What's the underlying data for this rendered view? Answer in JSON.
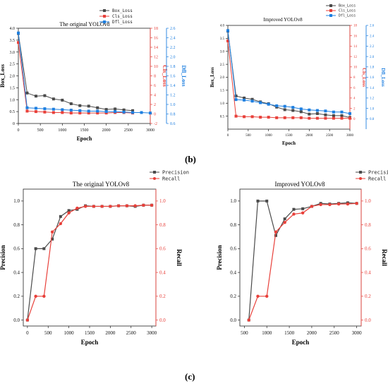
{
  "captions": {
    "b": "(b)",
    "c": "(c)"
  },
  "chart_data": [
    {
      "type": "line",
      "title": "The original YOLOv8",
      "xlabel": "Epoch",
      "ylabel": "Box_Loss",
      "y2label": "Cls_Loss",
      "y3label": "Dfl_Loss",
      "xlim": [
        0,
        3000
      ],
      "xticks": [
        0,
        500,
        1000,
        1500,
        2000,
        2500,
        3000
      ],
      "ylim": [
        0,
        4
      ],
      "yticks": [
        "0",
        "0.5",
        "1.0",
        "1.5",
        "2.0",
        "2.5",
        "3.0",
        "3.5",
        "4.0"
      ],
      "y2lim": [
        -2,
        18
      ],
      "y2ticks": [
        "-2",
        "0",
        "2",
        "4",
        "6",
        "8",
        "10",
        "12",
        "14",
        "16",
        "18"
      ],
      "y3lim": [
        0.6,
        2.6
      ],
      "y3ticks": [
        "0.6",
        "0.8",
        "1.0",
        "1.2",
        "1.4",
        "1.6",
        "1.8",
        "2.0",
        "2.2",
        "2.4",
        "2.6"
      ],
      "legend_position": "top-right",
      "series": [
        {
          "name": "Box_Loss",
          "axis": "y",
          "color": "#4a4a4a",
          "x": [
            0,
            200,
            400,
            600,
            800,
            1000,
            1200,
            1400,
            1600,
            1800,
            2000,
            2200,
            2400,
            2600
          ],
          "values": [
            3.78,
            1.28,
            1.15,
            1.17,
            1.03,
            0.98,
            0.83,
            0.75,
            0.73,
            0.66,
            0.59,
            0.61,
            0.57,
            0.54
          ]
        },
        {
          "name": "Cls_Loss",
          "axis": "y2",
          "color": "#e8403a",
          "x": [
            0,
            200,
            400,
            600,
            800,
            1000,
            1200,
            1400,
            1600,
            1800,
            2000,
            2200,
            2400,
            2600
          ],
          "values": [
            15.0,
            0.6,
            0.5,
            0.4,
            0.3,
            0.3,
            0.2,
            0.2,
            0.2,
            0.2,
            0.2,
            0.3,
            0.3,
            0.2
          ]
        },
        {
          "name": "Dfl_Loss",
          "axis": "y3",
          "color": "#1e7fe0",
          "x": [
            0,
            200,
            400,
            600,
            800,
            1000,
            1200,
            1400,
            1600,
            1800,
            2000,
            2200,
            2400,
            2600,
            2800,
            3000
          ],
          "values": [
            2.5,
            0.93,
            0.92,
            0.91,
            0.9,
            0.89,
            0.88,
            0.87,
            0.86,
            0.86,
            0.85,
            0.85,
            0.84,
            0.83,
            0.83,
            0.82
          ]
        }
      ]
    },
    {
      "type": "line",
      "title": "Improved YOLOv8",
      "xlabel": "Epoch",
      "ylabel": "Box_Loss",
      "y2label": "Cls_Loss",
      "y3label": "Dfl_Loss",
      "xlim": [
        0,
        3000
      ],
      "xticks": [
        0,
        500,
        1000,
        1500,
        2000,
        2500,
        3000
      ],
      "ylim": [
        0,
        4.0
      ],
      "yticks": [
        "0.5",
        "1.0",
        "1.5",
        "2.0",
        "2.5",
        "3.0",
        "3.5",
        "4.0"
      ],
      "y2lim": [
        -2,
        18
      ],
      "y2ticks": [
        "0",
        "2",
        "4",
        "6",
        "8",
        "10",
        "12",
        "14",
        "16",
        "18"
      ],
      "y3lim": [
        0.6,
        2.6
      ],
      "y3ticks": [
        "0.8",
        "1.0",
        "1.2",
        "1.4",
        "1.6",
        "1.8",
        "2.0",
        "2.2",
        "2.4",
        "2.6"
      ],
      "legend_position": "top-right",
      "series": [
        {
          "name": "Box_Loss",
          "axis": "y",
          "color": "#4a4a4a",
          "x": [
            0,
            200,
            400,
            600,
            800,
            1000,
            1200,
            1400,
            1600,
            1800,
            2000,
            2200,
            2400,
            2600,
            2800,
            3000
          ],
          "values": [
            3.78,
            1.28,
            1.2,
            1.15,
            1.05,
            0.98,
            0.85,
            0.75,
            0.72,
            0.67,
            0.58,
            0.6,
            0.55,
            0.52,
            0.52,
            0.45
          ]
        },
        {
          "name": "Cls_Loss",
          "axis": "y2",
          "color": "#e8403a",
          "x": [
            0,
            200,
            400,
            600,
            800,
            1000,
            1200,
            1400,
            1600,
            1800,
            2000,
            2200,
            2400,
            2600,
            2800,
            3000
          ],
          "values": [
            15.0,
            0.5,
            0.4,
            0.4,
            0.3,
            0.3,
            0.2,
            0.2,
            0.2,
            0.2,
            0.1,
            0.1,
            0.1,
            0.1,
            0.1,
            0.1
          ]
        },
        {
          "name": "Dfl_Loss",
          "axis": "y3",
          "color": "#1e7fe0",
          "x": [
            0,
            200,
            400,
            600,
            800,
            1000,
            1200,
            1400,
            1600,
            1800,
            2000,
            2200,
            2400,
            2600,
            2800,
            3000
          ],
          "values": [
            2.5,
            1.17,
            1.16,
            1.14,
            1.11,
            1.08,
            1.05,
            1.04,
            1.02,
            0.99,
            0.97,
            0.96,
            0.95,
            0.93,
            0.93,
            0.9
          ]
        }
      ]
    },
    {
      "type": "line",
      "title": "The original YOLOv8",
      "xlabel": "Epoch",
      "ylabel": "Precision",
      "y2label": "Recall",
      "xlim": [
        -100,
        3100
      ],
      "xticks": [
        0,
        500,
        1000,
        1500,
        2000,
        2500,
        3000
      ],
      "ylim": [
        -0.05,
        1.1
      ],
      "yticks": [
        "0.0",
        "0.2",
        "0.4",
        "0.6",
        "0.8",
        "1.0"
      ],
      "y2lim": [
        -0.05,
        1.1
      ],
      "y2ticks": [
        "0.0",
        "0.2",
        "0.4",
        "0.6",
        "0.8",
        "1.0"
      ],
      "legend_position": "top-right",
      "series": [
        {
          "name": "Precision",
          "axis": "y",
          "color": "#4a4a4a",
          "x": [
            0,
            200,
            400,
            600,
            800,
            1000,
            1200,
            1400,
            1600,
            1800,
            2000,
            2200,
            2400,
            2600,
            2800,
            3000
          ],
          "values": [
            0.0,
            0.6,
            0.6,
            0.68,
            0.87,
            0.92,
            0.93,
            0.96,
            0.955,
            0.955,
            0.955,
            0.96,
            0.96,
            0.955,
            0.965,
            0.965
          ]
        },
        {
          "name": "Recall",
          "axis": "y2",
          "color": "#e8403a",
          "x": [
            0,
            200,
            400,
            600,
            800,
            1000,
            1200,
            1400,
            1600,
            1800,
            2000,
            2200,
            2400,
            2600,
            2800,
            3000
          ],
          "values": [
            0.0,
            0.2,
            0.2,
            0.74,
            0.81,
            0.9,
            0.94,
            0.955,
            0.955,
            0.955,
            0.955,
            0.96,
            0.96,
            0.96,
            0.965,
            0.965
          ]
        }
      ]
    },
    {
      "type": "line",
      "title": "Improved YOLOv8",
      "xlabel": "Epoch",
      "ylabel": "Precision",
      "y2label": "Recall",
      "xlim": [
        400,
        3100
      ],
      "xticks": [
        500,
        1000,
        1500,
        2000,
        2500,
        3000
      ],
      "ylim": [
        -0.05,
        1.1
      ],
      "yticks": [
        "0.0",
        "0.2",
        "0.4",
        "0.6",
        "0.8",
        "1.0"
      ],
      "y2lim": [
        -0.05,
        1.1
      ],
      "y2ticks": [
        "0.0",
        "0.2",
        "0.4",
        "0.6",
        "0.8",
        "1.0"
      ],
      "legend_position": "top-right",
      "series": [
        {
          "name": "Precision",
          "axis": "y",
          "color": "#4a4a4a",
          "x": [
            600,
            800,
            1000,
            1200,
            1400,
            1600,
            1800,
            2000,
            2200,
            2400,
            2600,
            2800,
            3000
          ],
          "values": [
            0.0,
            1.0,
            1.0,
            0.71,
            0.85,
            0.93,
            0.935,
            0.955,
            0.98,
            0.975,
            0.98,
            0.985,
            0.98
          ]
        },
        {
          "name": "Recall",
          "axis": "y2",
          "color": "#e8403a",
          "x": [
            600,
            800,
            1000,
            1200,
            1400,
            1600,
            1800,
            2000,
            2200,
            2400,
            2600,
            2800,
            3000
          ],
          "values": [
            0.0,
            0.2,
            0.2,
            0.74,
            0.82,
            0.89,
            0.9,
            0.955,
            0.97,
            0.97,
            0.975,
            0.975,
            0.98
          ]
        }
      ]
    }
  ]
}
